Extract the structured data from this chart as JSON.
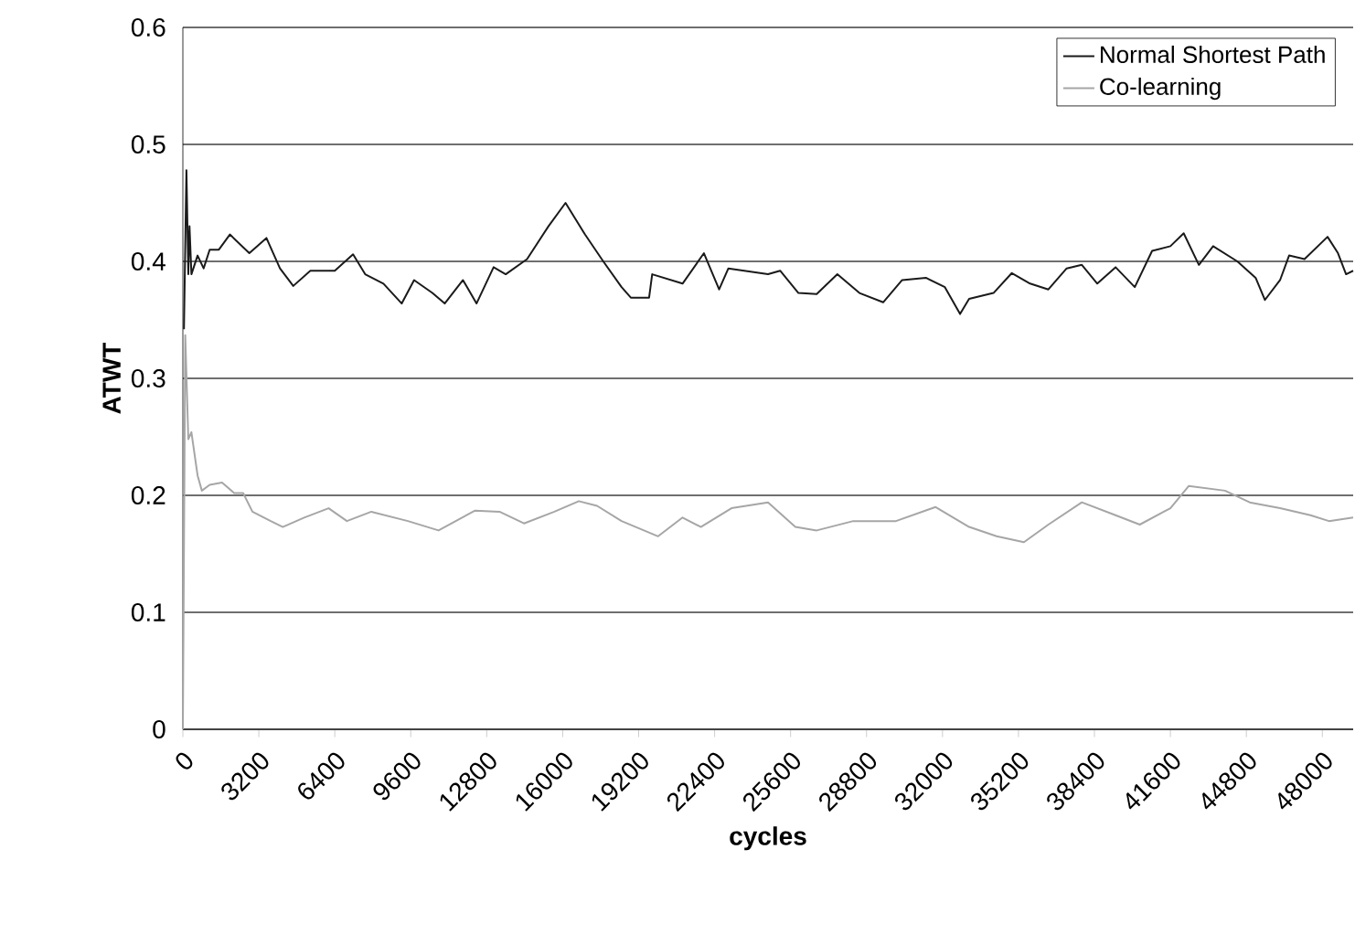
{
  "chart_data": {
    "type": "line",
    "xlabel": "cycles",
    "ylabel": "ATWT",
    "xlim": [
      0,
      49300
    ],
    "xticks": [
      0,
      3200,
      6400,
      9600,
      12800,
      16000,
      19200,
      22400,
      25600,
      28800,
      32000,
      35200,
      38400,
      41600,
      44800,
      48000
    ],
    "ylim": [
      0,
      0.6
    ],
    "yticks": [
      0,
      0.1,
      0.2,
      0.3,
      0.4,
      0.5,
      0.6
    ],
    "grid": "y",
    "legend": "top right",
    "series": [
      {
        "name": "Normal Shortest Path",
        "color": "#1a1a1a",
        "x": [
          46,
          150,
          230,
          280,
          360,
          620,
          875,
          1130,
          1517,
          1980,
          2800,
          3520,
          4090,
          4650,
          5370,
          6400,
          7170,
          7680,
          8450,
          9220,
          9740,
          10510,
          11030,
          11800,
          12370,
          13090,
          13600,
          14500,
          15400,
          16120,
          16940,
          17710,
          18480,
          18870,
          19640,
          19770,
          21050,
          21950,
          22590,
          22980,
          24650,
          25160,
          25930,
          26700,
          27570,
          28500,
          29500,
          30300,
          31300,
          32100,
          32740,
          33120,
          34150,
          34920,
          35690,
          36460,
          37230,
          37870,
          38520,
          39290,
          40100,
          40830,
          41600,
          42160,
          42800,
          43400,
          44420,
          45190,
          45580,
          46220,
          46600,
          47250,
          48220,
          48660,
          49000,
          49300
        ],
        "values": [
          0.342,
          0.478,
          0.389,
          0.43,
          0.389,
          0.405,
          0.394,
          0.41,
          0.41,
          0.423,
          0.407,
          0.42,
          0.394,
          0.379,
          0.392,
          0.392,
          0.406,
          0.389,
          0.381,
          0.364,
          0.384,
          0.373,
          0.364,
          0.384,
          0.364,
          0.395,
          0.389,
          0.402,
          0.43,
          0.45,
          0.423,
          0.4,
          0.378,
          0.369,
          0.369,
          0.389,
          0.381,
          0.407,
          0.376,
          0.394,
          0.389,
          0.392,
          0.373,
          0.372,
          0.389,
          0.373,
          0.365,
          0.384,
          0.386,
          0.378,
          0.355,
          0.368,
          0.373,
          0.39,
          0.381,
          0.376,
          0.394,
          0.397,
          0.381,
          0.395,
          0.378,
          0.409,
          0.413,
          0.424,
          0.397,
          0.413,
          0.4,
          0.386,
          0.367,
          0.384,
          0.405,
          0.402,
          0.421,
          0.407,
          0.389,
          0.392
        ]
      },
      {
        "name": "Co-learning",
        "color": "#a6a6a6",
        "x": [
          0,
          100,
          230,
          360,
          620,
          800,
          1130,
          1650,
          2160,
          2540,
          2930,
          3700,
          4210,
          5110,
          6140,
          6910,
          7940,
          9480,
          10770,
          12310,
          13340,
          14370,
          15650,
          16680,
          17450,
          18480,
          20020,
          21050,
          21820,
          23110,
          24650,
          25800,
          26700,
          28240,
          30040,
          31710,
          33120,
          34280,
          35430,
          36460,
          37870,
          39290,
          40310,
          41600,
          42370,
          43900,
          44940,
          46220,
          47500,
          48280,
          49300
        ],
        "values": [
          0,
          0.337,
          0.248,
          0.254,
          0.217,
          0.204,
          0.209,
          0.211,
          0.202,
          0.202,
          0.186,
          0.178,
          0.173,
          0.181,
          0.189,
          0.178,
          0.186,
          0.178,
          0.17,
          0.187,
          0.186,
          0.176,
          0.186,
          0.195,
          0.191,
          0.178,
          0.165,
          0.181,
          0.173,
          0.189,
          0.194,
          0.173,
          0.17,
          0.178,
          0.178,
          0.19,
          0.173,
          0.165,
          0.16,
          0.175,
          0.194,
          0.183,
          0.175,
          0.189,
          0.208,
          0.204,
          0.194,
          0.189,
          0.183,
          0.178,
          0.181
        ]
      }
    ]
  }
}
